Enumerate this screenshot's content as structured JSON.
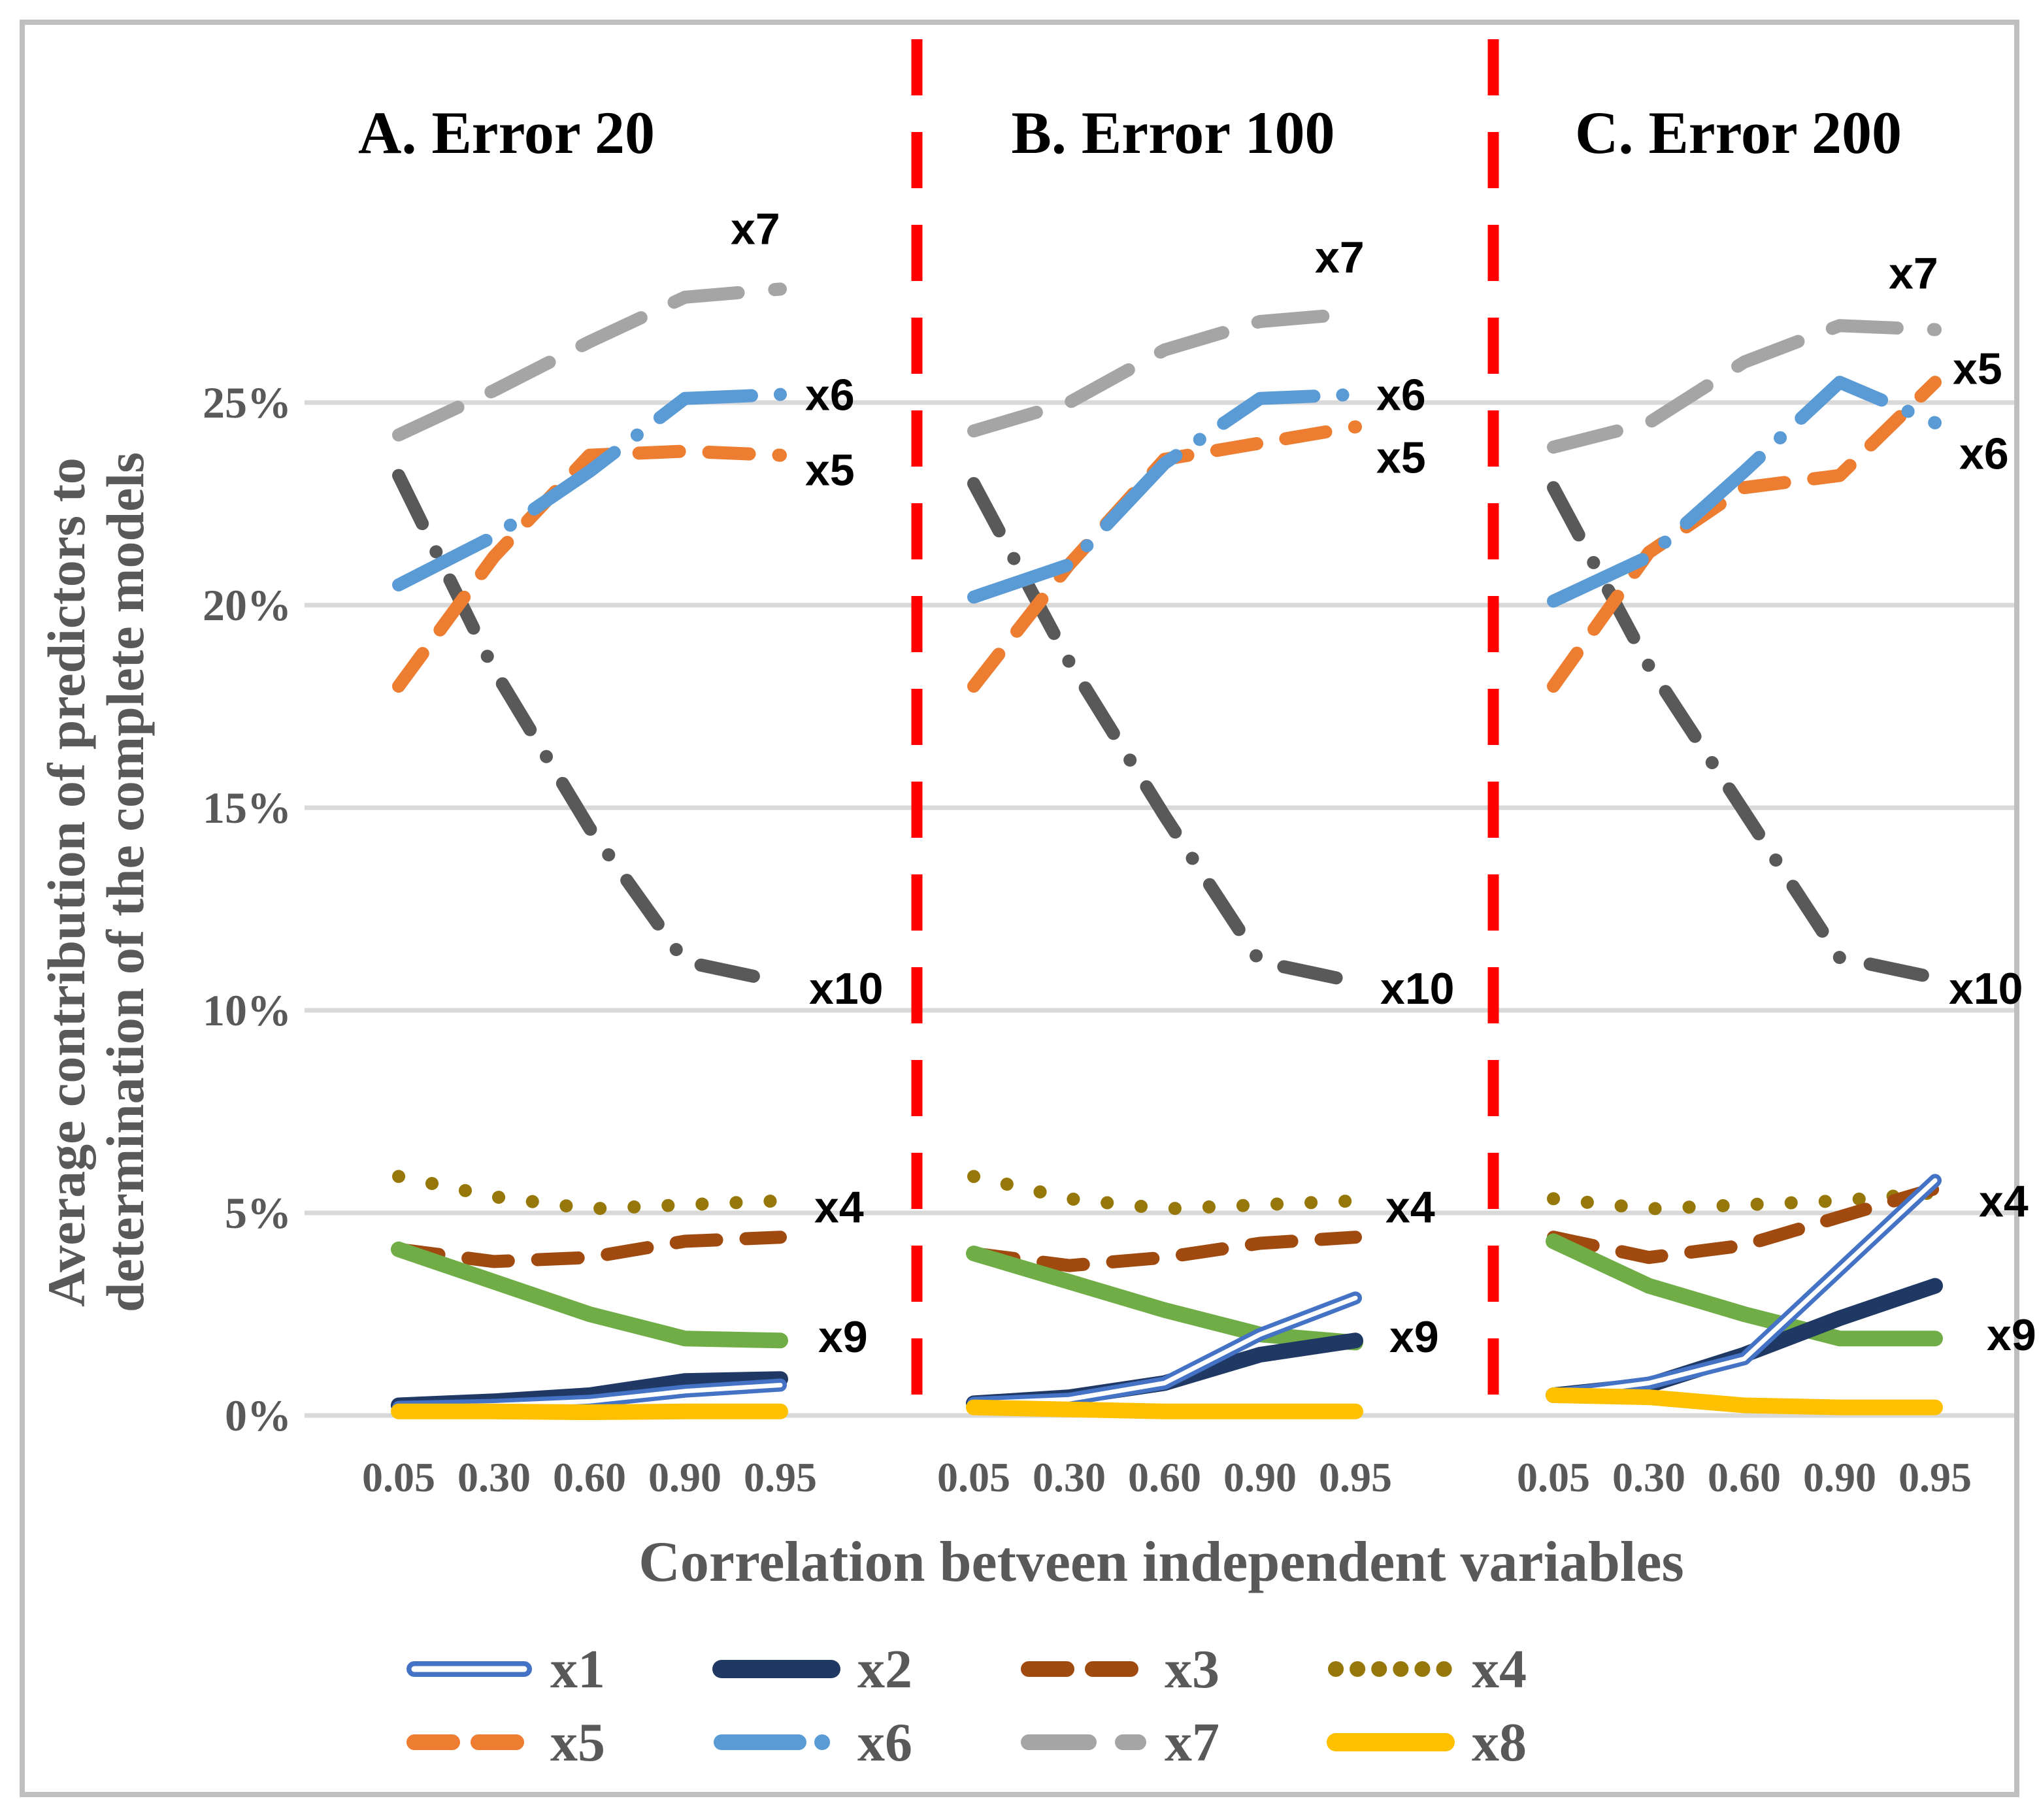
{
  "figure": {
    "y_axis_title_line1": "Average contribution of predictors to",
    "y_axis_title_line2": "determination of the complete models",
    "x_axis_title": "Correlation betveen independent variables"
  },
  "chart_data": {
    "type": "line",
    "categories": [
      "0.05",
      "0.30",
      "0.60",
      "0.90",
      "0.95"
    ],
    "y_ticks": [
      "0%",
      "5%",
      "10%",
      "15%",
      "20%",
      "25%"
    ],
    "ylim": [
      0,
      29
    ],
    "grid": true,
    "legend_position": "bottom",
    "divider_color": "#FF0000",
    "gridline_color": "#D9D9D9",
    "axis_text_color": "#595959",
    "series_styles": [
      {
        "id": "x1",
        "color": "#4472C4",
        "style": "double"
      },
      {
        "id": "x2",
        "color": "#1F3864",
        "style": "solid"
      },
      {
        "id": "x3",
        "color": "#A04A10",
        "style": "dash"
      },
      {
        "id": "x4",
        "color": "#96780A",
        "style": "dot"
      },
      {
        "id": "x5",
        "color": "#ED7D31",
        "style": "dash"
      },
      {
        "id": "x6",
        "color": "#5B9BD5",
        "style": "long-dash-dot"
      },
      {
        "id": "x7",
        "color": "#A5A5A5",
        "style": "long-dash"
      },
      {
        "id": "x8",
        "color": "#FFC000",
        "style": "solid"
      },
      {
        "id": "x9",
        "color": "#70AD47",
        "style": "solid"
      },
      {
        "id": "x10",
        "color": "#595959",
        "style": "dash-dot"
      }
    ],
    "panels": [
      {
        "title": "A. Error 20",
        "series": {
          "x1": [
            0.2,
            0.25,
            0.35,
            0.6,
            0.75
          ],
          "x2": [
            0.25,
            0.35,
            0.5,
            0.85,
            0.9
          ],
          "x3": [
            4.1,
            3.8,
            3.9,
            4.3,
            4.4
          ],
          "x4": [
            5.9,
            5.4,
            5.1,
            5.2,
            5.3
          ],
          "x5": [
            18.0,
            21.2,
            23.7,
            23.8,
            23.7
          ],
          "x6": [
            20.5,
            21.7,
            23.3,
            25.1,
            25.2
          ],
          "x7": [
            24.2,
            25.3,
            26.5,
            27.6,
            27.8
          ],
          "x8": [
            0.1,
            0.1,
            0.08,
            0.1,
            0.1
          ],
          "x9": [
            4.1,
            3.3,
            2.5,
            1.9,
            1.85
          ],
          "x10": [
            23.2,
            18.4,
            14.5,
            11.2,
            10.7
          ]
        },
        "labels": [
          {
            "text": "x7",
            "value": 29.3
          },
          {
            "text": "x6",
            "value": 25.2
          },
          {
            "text": "x5",
            "value": 23.35
          },
          {
            "text": "x10",
            "value": 10.55
          },
          {
            "text": "x4",
            "value": 5.15
          },
          {
            "text": "x9",
            "value": 1.95
          }
        ]
      },
      {
        "title": "B. Error 100",
        "series": {
          "x1": [
            0.3,
            0.4,
            0.8,
            2.0,
            2.9
          ],
          "x2": [
            0.3,
            0.45,
            0.8,
            1.5,
            1.85
          ],
          "x3": [
            4.0,
            3.7,
            3.9,
            4.25,
            4.4
          ],
          "x4": [
            5.9,
            5.35,
            5.1,
            5.2,
            5.3
          ],
          "x5": [
            18.0,
            21.0,
            23.6,
            24.0,
            24.4
          ],
          "x6": [
            20.2,
            21.0,
            23.5,
            25.1,
            25.2
          ],
          "x7": [
            24.3,
            25.0,
            26.3,
            27.0,
            27.2
          ],
          "x8": [
            0.2,
            0.15,
            0.1,
            0.1,
            0.1
          ],
          "x9": [
            4.0,
            3.3,
            2.6,
            2.0,
            1.8
          ],
          "x10": [
            23.0,
            18.6,
            14.8,
            11.2,
            10.7
          ]
        },
        "labels": [
          {
            "text": "x7",
            "value": 28.6
          },
          {
            "text": "x6",
            "value": 25.2
          },
          {
            "text": "x5",
            "value": 23.65
          },
          {
            "text": "x10",
            "value": 10.55
          },
          {
            "text": "x4",
            "value": 5.15
          },
          {
            "text": "x9",
            "value": 1.95
          }
        ]
      },
      {
        "title": "C. Error 200",
        "series": {
          "x1": [
            0.5,
            0.8,
            1.4,
            3.6,
            5.8
          ],
          "x2": [
            0.5,
            0.75,
            1.5,
            2.4,
            3.2
          ],
          "x3": [
            4.4,
            3.9,
            4.2,
            4.9,
            5.6
          ],
          "x4": [
            5.35,
            5.1,
            5.2,
            5.3,
            5.5
          ],
          "x5": [
            18.0,
            21.3,
            22.9,
            23.2,
            25.5
          ],
          "x6": [
            20.1,
            21.2,
            23.3,
            25.5,
            24.5
          ],
          "x7": [
            23.9,
            24.5,
            26.0,
            26.9,
            26.8
          ],
          "x8": [
            0.5,
            0.45,
            0.25,
            0.2,
            0.2
          ],
          "x9": [
            4.3,
            3.2,
            2.5,
            1.9,
            1.9
          ],
          "x10": [
            22.9,
            18.5,
            14.9,
            11.3,
            10.8
          ]
        },
        "labels": [
          {
            "text": "x7",
            "value": 28.2
          },
          {
            "text": "x5",
            "value": 25.85
          },
          {
            "text": "x6",
            "value": 23.75
          },
          {
            "text": "x10",
            "value": 10.55
          },
          {
            "text": "x4",
            "value": 5.3
          },
          {
            "text": "x9",
            "value": 2.0
          }
        ]
      }
    ]
  },
  "legend": {
    "items": [
      {
        "label": "x1"
      },
      {
        "label": "x2"
      },
      {
        "label": "x3"
      },
      {
        "label": "x4"
      },
      {
        "label": "x5"
      },
      {
        "label": "x6"
      },
      {
        "label": "x7"
      },
      {
        "label": "x8"
      }
    ]
  }
}
